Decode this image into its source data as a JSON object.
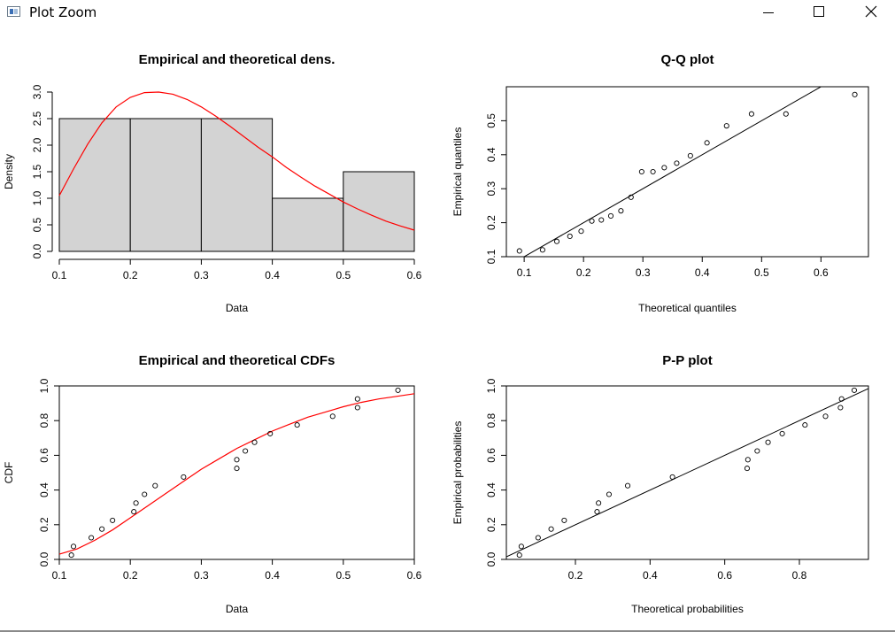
{
  "window": {
    "title": "Plot Zoom",
    "icon": "r-plot-window-icon",
    "controls": [
      "minimize-icon",
      "maximize-icon",
      "close-icon"
    ]
  },
  "colors": {
    "hist_fill": "#d3d3d3",
    "density_curve": "#ff0000",
    "axis": "#000000"
  },
  "chart_data": [
    {
      "id": "density",
      "type": "bar",
      "title": "Empirical and theoretical dens.",
      "xlabel": "Data",
      "ylabel": "Density",
      "xlim": [
        0.1,
        0.6
      ],
      "ylim": [
        0,
        3.0
      ],
      "x_ticks": [
        "0.1",
        "0.2",
        "0.3",
        "0.4",
        "0.5",
        "0.6"
      ],
      "y_ticks": [
        "0.0",
        "0.5",
        "1.0",
        "1.5",
        "2.0",
        "2.5",
        "3.0"
      ],
      "bins": [
        {
          "from": 0.1,
          "to": 0.2,
          "value": 2.5
        },
        {
          "from": 0.2,
          "to": 0.3,
          "value": 2.5
        },
        {
          "from": 0.3,
          "to": 0.4,
          "value": 2.5
        },
        {
          "from": 0.4,
          "to": 0.5,
          "value": 1.0
        },
        {
          "from": 0.5,
          "to": 0.6,
          "value": 1.5
        }
      ],
      "curve": {
        "x": [
          0.1,
          0.12,
          0.14,
          0.16,
          0.18,
          0.2,
          0.22,
          0.24,
          0.26,
          0.28,
          0.3,
          0.32,
          0.34,
          0.36,
          0.38,
          0.4,
          0.42,
          0.44,
          0.46,
          0.48,
          0.5,
          0.52,
          0.54,
          0.56,
          0.58,
          0.6
        ],
        "y": [
          1.05,
          1.55,
          2.02,
          2.42,
          2.72,
          2.9,
          2.99,
          3.0,
          2.96,
          2.86,
          2.72,
          2.55,
          2.36,
          2.16,
          1.96,
          1.78,
          1.58,
          1.4,
          1.23,
          1.08,
          0.93,
          0.8,
          0.68,
          0.57,
          0.48,
          0.4
        ]
      }
    },
    {
      "id": "qq",
      "type": "scatter",
      "title": "Q-Q plot",
      "xlabel": "Theoretical quantiles",
      "ylabel": "Empirical quantiles",
      "xlim": [
        0.07,
        0.68
      ],
      "ylim": [
        0.1,
        0.6
      ],
      "x_ticks": [
        "0.1",
        "0.2",
        "0.3",
        "0.4",
        "0.5",
        "0.6"
      ],
      "y_ticks": [
        "0.1",
        "0.2",
        "0.3",
        "0.4",
        "0.5"
      ],
      "points": [
        [
          0.092,
          0.117
        ],
        [
          0.131,
          0.12
        ],
        [
          0.155,
          0.145
        ],
        [
          0.177,
          0.16
        ],
        [
          0.196,
          0.175
        ],
        [
          0.214,
          0.205
        ],
        [
          0.23,
          0.208
        ],
        [
          0.246,
          0.22
        ],
        [
          0.263,
          0.235
        ],
        [
          0.28,
          0.275
        ],
        [
          0.298,
          0.35
        ],
        [
          0.317,
          0.35
        ],
        [
          0.336,
          0.362
        ],
        [
          0.357,
          0.375
        ],
        [
          0.38,
          0.397
        ],
        [
          0.408,
          0.435
        ],
        [
          0.441,
          0.485
        ],
        [
          0.483,
          0.52
        ],
        [
          0.541,
          0.52
        ],
        [
          0.657,
          0.577
        ]
      ],
      "line": [
        [
          0.095,
          0.095
        ],
        [
          0.63,
          0.63
        ]
      ]
    },
    {
      "id": "cdf",
      "type": "line",
      "title": "Empirical and theoretical CDFs",
      "xlabel": "Data",
      "ylabel": "CDF",
      "xlim": [
        0.1,
        0.6
      ],
      "ylim": [
        0,
        1.0
      ],
      "x_ticks": [
        "0.1",
        "0.2",
        "0.3",
        "0.4",
        "0.5",
        "0.6"
      ],
      "y_ticks": [
        "0.0",
        "0.2",
        "0.4",
        "0.6",
        "0.8",
        "1.0"
      ],
      "points": [
        [
          0.117,
          0.025
        ],
        [
          0.12,
          0.075
        ],
        [
          0.145,
          0.125
        ],
        [
          0.16,
          0.175
        ],
        [
          0.175,
          0.225
        ],
        [
          0.205,
          0.275
        ],
        [
          0.208,
          0.325
        ],
        [
          0.22,
          0.375
        ],
        [
          0.235,
          0.425
        ],
        [
          0.275,
          0.475
        ],
        [
          0.35,
          0.525
        ],
        [
          0.35,
          0.575
        ],
        [
          0.362,
          0.625
        ],
        [
          0.375,
          0.675
        ],
        [
          0.397,
          0.725
        ],
        [
          0.435,
          0.775
        ],
        [
          0.485,
          0.825
        ],
        [
          0.52,
          0.875
        ],
        [
          0.52,
          0.925
        ],
        [
          0.577,
          0.975
        ]
      ],
      "curve": {
        "x": [
          0.1,
          0.125,
          0.15,
          0.175,
          0.2,
          0.225,
          0.25,
          0.275,
          0.3,
          0.325,
          0.35,
          0.375,
          0.4,
          0.425,
          0.45,
          0.475,
          0.5,
          0.525,
          0.55,
          0.575,
          0.6
        ],
        "y": [
          0.03,
          0.06,
          0.11,
          0.17,
          0.24,
          0.31,
          0.38,
          0.45,
          0.52,
          0.58,
          0.64,
          0.69,
          0.74,
          0.78,
          0.82,
          0.85,
          0.88,
          0.905,
          0.925,
          0.94,
          0.955
        ]
      }
    },
    {
      "id": "pp",
      "type": "scatter",
      "title": "P-P plot",
      "xlabel": "Theoretical probabilities",
      "ylabel": "Empirical probabilities",
      "xlim": [
        0.015,
        0.985
      ],
      "ylim": [
        0,
        1.0
      ],
      "x_ticks": [
        "0.2",
        "0.4",
        "0.6",
        "0.8"
      ],
      "y_ticks": [
        "0.0",
        "0.2",
        "0.4",
        "0.6",
        "0.8",
        "1.0"
      ],
      "points": [
        [
          0.05,
          0.025
        ],
        [
          0.055,
          0.075
        ],
        [
          0.1,
          0.125
        ],
        [
          0.135,
          0.175
        ],
        [
          0.17,
          0.225
        ],
        [
          0.258,
          0.275
        ],
        [
          0.262,
          0.325
        ],
        [
          0.29,
          0.375
        ],
        [
          0.34,
          0.425
        ],
        [
          0.46,
          0.475
        ],
        [
          0.66,
          0.525
        ],
        [
          0.662,
          0.575
        ],
        [
          0.687,
          0.625
        ],
        [
          0.716,
          0.675
        ],
        [
          0.754,
          0.725
        ],
        [
          0.815,
          0.775
        ],
        [
          0.87,
          0.825
        ],
        [
          0.91,
          0.875
        ],
        [
          0.913,
          0.925
        ],
        [
          0.947,
          0.975
        ]
      ],
      "line": [
        [
          0.015,
          0.015
        ],
        [
          0.985,
          0.985
        ]
      ]
    }
  ]
}
